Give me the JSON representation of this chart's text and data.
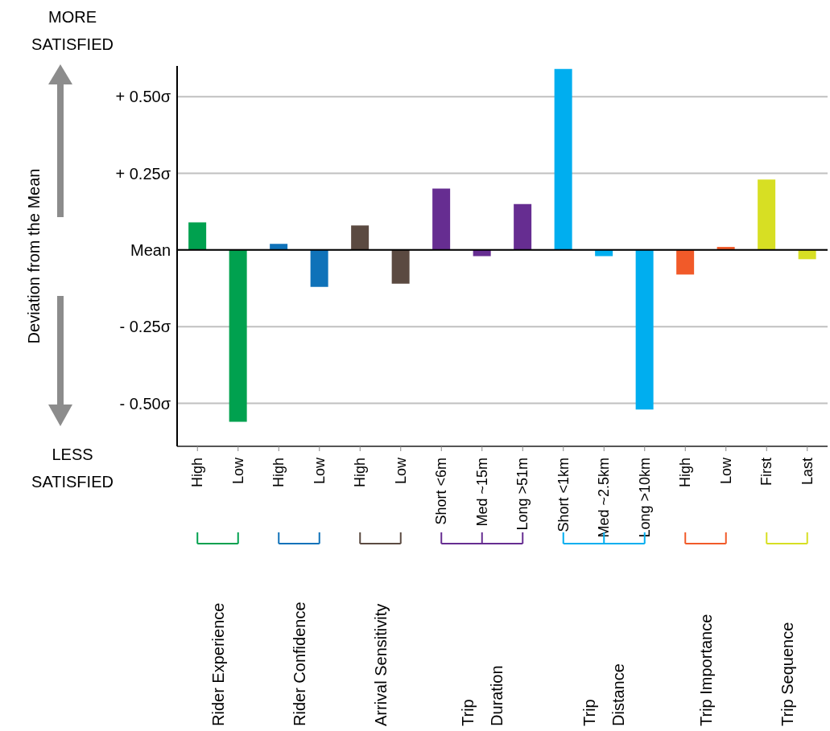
{
  "chart_data": {
    "type": "bar",
    "ylabel": "Deviation from the Mean",
    "categories": [
      "High",
      "Low",
      "High",
      "Low",
      "High",
      "Low",
      "Short <6m",
      "Med ~15m",
      "Long >51m",
      "Short <1km",
      "Med ~2.5km",
      "Long >10km",
      "High",
      "Low",
      "First",
      "Last"
    ],
    "values": [
      0.09,
      -0.56,
      0.02,
      -0.12,
      0.08,
      -0.11,
      0.2,
      -0.02,
      0.15,
      0.59,
      -0.02,
      -0.52,
      -0.08,
      0.01,
      0.23,
      -0.03
    ],
    "colors": [
      "#00a14f",
      "#00a14f",
      "#0f72b9",
      "#0f72b9",
      "#5b4a41",
      "#5b4a41",
      "#662d91",
      "#662d91",
      "#662d91",
      "#00aeef",
      "#00aeef",
      "#00aeef",
      "#f15a29",
      "#f15a29",
      "#d7df23",
      "#d7df23"
    ],
    "ylim": [
      -0.64,
      0.6
    ],
    "yticks": [
      {
        "value": -0.5,
        "label": "- 0.50σ"
      },
      {
        "value": -0.25,
        "label": "- 0.25σ"
      },
      {
        "value": 0,
        "label": "Mean"
      },
      {
        "value": 0.25,
        "label": "+ 0.25σ"
      },
      {
        "value": 0.5,
        "label": "+ 0.50σ"
      }
    ],
    "grid": "y",
    "ref_lines": [
      {
        "axis": "y",
        "value": 0,
        "color": "#000000"
      }
    ],
    "annotations": [
      "MORE\nSATISFIED",
      "LESS\nSATISFIED",
      "Rider Experience",
      "Rider Confidence",
      "Arrival Sensitivity",
      "Trip\nDuration",
      "Trip\nDistance",
      "Trip Importance",
      "Trip Sequence"
    ]
  }
}
